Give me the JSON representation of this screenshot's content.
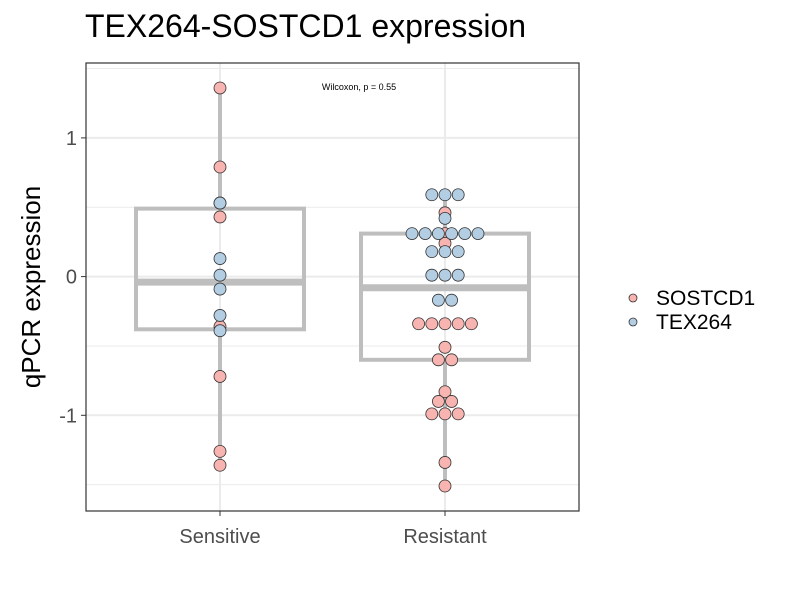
{
  "chart_data": {
    "type": "box",
    "title": "TEX264-SOSTCD1 expression",
    "xlabel": "",
    "ylabel": "qPCR expression",
    "ylim": [
      -1.69,
      1.54
    ],
    "yticks": [
      -1,
      0,
      1
    ],
    "ytick_labels": [
      "-1",
      "0",
      "1"
    ],
    "categories": [
      "Sensitive",
      "Resistant"
    ],
    "annotation": "Wilcoxon, p = 0.55",
    "grid": true,
    "legend_position": "right",
    "colors": {
      "SOSTCD1": "#f8b4b0",
      "TEX264": "#b3cde3",
      "box": "#bebebe",
      "point_edge": "#333333",
      "grid": "#ebebeb",
      "panel_border": "#333333"
    },
    "boxes": [
      {
        "category": "Sensitive",
        "q1": -0.38,
        "median": -0.04,
        "q3": 0.49,
        "whisker_low": -1.36,
        "whisker_high": 1.36
      },
      {
        "category": "Resistant",
        "q1": -0.6,
        "median": -0.08,
        "q3": 0.31,
        "whisker_low": -1.51,
        "whisker_high": 0.59
      }
    ],
    "series": [
      {
        "name": "SOSTCD1",
        "points": [
          {
            "x": "Sensitive",
            "y": 1.36
          },
          {
            "x": "Sensitive",
            "y": 0.79
          },
          {
            "x": "Sensitive",
            "y": 0.53
          },
          {
            "x": "Sensitive",
            "y": 0.43
          },
          {
            "x": "Sensitive",
            "y": -0.36
          },
          {
            "x": "Sensitive",
            "y": -0.72
          },
          {
            "x": "Sensitive",
            "y": -1.26
          },
          {
            "x": "Sensitive",
            "y": -1.36
          },
          {
            "x": "Resistant",
            "y": 0.46
          },
          {
            "x": "Resistant",
            "y": 0.31
          },
          {
            "x": "Resistant",
            "y": 0.24
          },
          {
            "x": "Resistant",
            "y": -0.34
          },
          {
            "x": "Resistant",
            "y": -0.34
          },
          {
            "x": "Resistant",
            "y": -0.34
          },
          {
            "x": "Resistant",
            "y": -0.34
          },
          {
            "x": "Resistant",
            "y": -0.34
          },
          {
            "x": "Resistant",
            "y": -0.51
          },
          {
            "x": "Resistant",
            "y": -0.6
          },
          {
            "x": "Resistant",
            "y": -0.6
          },
          {
            "x": "Resistant",
            "y": -0.83
          },
          {
            "x": "Resistant",
            "y": -0.9
          },
          {
            "x": "Resistant",
            "y": -0.9
          },
          {
            "x": "Resistant",
            "y": -0.99
          },
          {
            "x": "Resistant",
            "y": -0.99
          },
          {
            "x": "Resistant",
            "y": -0.99
          },
          {
            "x": "Resistant",
            "y": -1.34
          },
          {
            "x": "Resistant",
            "y": -1.51
          }
        ]
      },
      {
        "name": "TEX264",
        "points": [
          {
            "x": "Sensitive",
            "y": 0.53
          },
          {
            "x": "Sensitive",
            "y": 0.13
          },
          {
            "x": "Sensitive",
            "y": 0.01
          },
          {
            "x": "Sensitive",
            "y": -0.09
          },
          {
            "x": "Sensitive",
            "y": -0.28
          },
          {
            "x": "Sensitive",
            "y": -0.39
          },
          {
            "x": "Resistant",
            "y": 0.59
          },
          {
            "x": "Resistant",
            "y": 0.59
          },
          {
            "x": "Resistant",
            "y": 0.59
          },
          {
            "x": "Resistant",
            "y": 0.42
          },
          {
            "x": "Resistant",
            "y": 0.31
          },
          {
            "x": "Resistant",
            "y": 0.31
          },
          {
            "x": "Resistant",
            "y": 0.31
          },
          {
            "x": "Resistant",
            "y": 0.31
          },
          {
            "x": "Resistant",
            "y": 0.31
          },
          {
            "x": "Resistant",
            "y": 0.31
          },
          {
            "x": "Resistant",
            "y": 0.18
          },
          {
            "x": "Resistant",
            "y": 0.18
          },
          {
            "x": "Resistant",
            "y": 0.18
          },
          {
            "x": "Resistant",
            "y": 0.01
          },
          {
            "x": "Resistant",
            "y": 0.01
          },
          {
            "x": "Resistant",
            "y": 0.01
          },
          {
            "x": "Resistant",
            "y": -0.17
          },
          {
            "x": "Resistant",
            "y": -0.17
          }
        ]
      }
    ],
    "legend": [
      "SOSTCD1",
      "TEX264"
    ]
  }
}
